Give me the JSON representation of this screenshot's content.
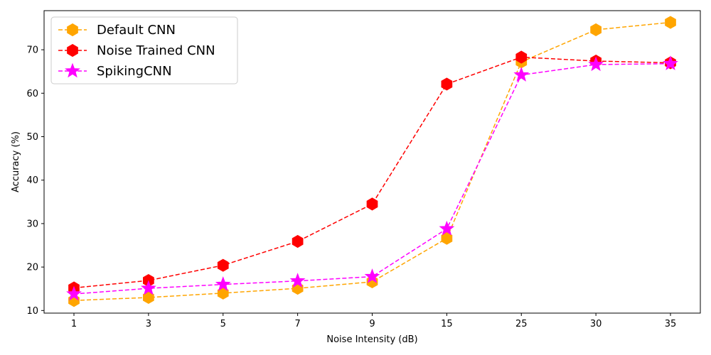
{
  "chart_data": {
    "type": "line",
    "xlabel": "Noise Intensity (dB)",
    "ylabel": "Accuracy (%)",
    "categories": [
      "1",
      "3",
      "5",
      "7",
      "9",
      "15",
      "25",
      "30",
      "35"
    ],
    "ylim": [
      9.4,
      79.0
    ],
    "yticks": [
      10,
      20,
      30,
      40,
      50,
      60,
      70
    ],
    "grid": false,
    "legend_position": "top-left",
    "series": [
      {
        "name": "Default CNN",
        "values": [
          12.3,
          13.0,
          14.0,
          15.1,
          16.6,
          26.6,
          67.2,
          74.6,
          76.3
        ],
        "color": "#FFA500",
        "marker": "hexagon"
      },
      {
        "name": "Noise Trained CNN",
        "values": [
          15.2,
          16.9,
          20.4,
          25.9,
          34.5,
          62.1,
          68.3,
          67.4,
          67.0
        ],
        "color": "#FF0000",
        "marker": "hexagon"
      },
      {
        "name": "SpikingCNN",
        "values": [
          13.8,
          15.1,
          16.0,
          16.8,
          17.8,
          28.8,
          64.2,
          66.6,
          66.8
        ],
        "color": "#FF00FF",
        "marker": "star"
      }
    ]
  }
}
